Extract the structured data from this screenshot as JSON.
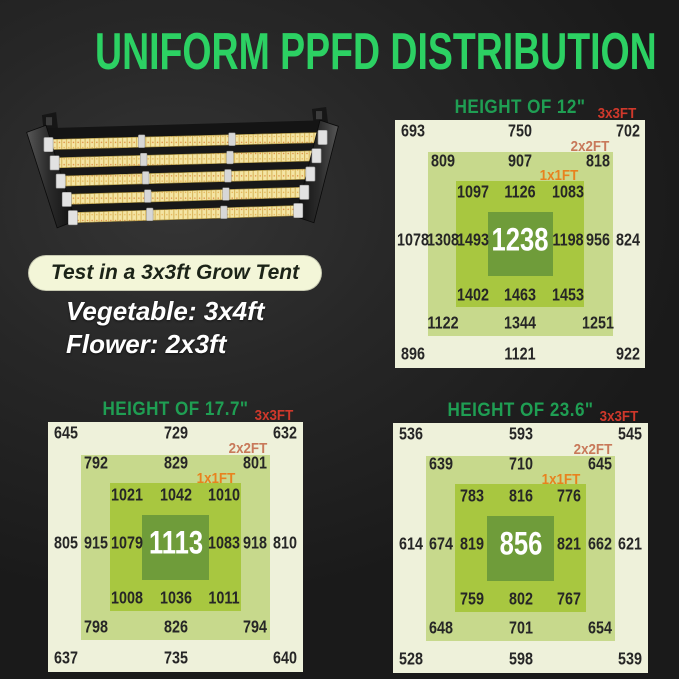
{
  "title": "UNIFORM PPFD DISTRIBUTION",
  "left_panel": {
    "tent_note": "Test in a 3x3ft Grow Tent",
    "vegetable": "Vegetable: 3x4ft",
    "flower": "Flower: 2x3ft"
  },
  "colors": {
    "title_green": "#2cd163",
    "header_green": "#1f9e53",
    "label_red": "#cf382b",
    "label_salmon": "#c8795a",
    "label_orange": "#e8821e",
    "box_3x3": "#eef1da",
    "box_2x2": "#c7d98c",
    "box_1x1": "#a8c740",
    "box_center": "#6f9c3a",
    "value_text": "#262626",
    "center_value_text": "#ffffff",
    "pill_bg": "#f3f6d8",
    "pill_text": "#1c2418",
    "body_text": "#ffffff"
  },
  "chart_data": [
    {
      "type": "heatmap",
      "title": "HEIGHT OF 12\"",
      "rings": {
        "outer": "3x3FT",
        "mid": "2x2FT",
        "inner": "1x1FT"
      },
      "center_value": 1238,
      "rows": [
        [
          693,
          750,
          702
        ],
        [
          809,
          907,
          818
        ],
        [
          1097,
          1126,
          1083
        ],
        [
          1078,
          1308,
          1493,
          1238,
          1198,
          956,
          824
        ],
        [
          1402,
          1463,
          1453
        ],
        [
          1122,
          1344,
          1251
        ],
        [
          896,
          1121,
          922
        ]
      ]
    },
    {
      "type": "heatmap",
      "title": "HEIGHT OF 17.7\"",
      "rings": {
        "outer": "3x3FT",
        "mid": "2x2FT",
        "inner": "1x1FT"
      },
      "center_value": 1113,
      "rows": [
        [
          645,
          729,
          632
        ],
        [
          792,
          829,
          801
        ],
        [
          1021,
          1042,
          1010
        ],
        [
          805,
          915,
          1079,
          1113,
          1083,
          918,
          810
        ],
        [
          1008,
          1036,
          1011
        ],
        [
          798,
          826,
          794
        ],
        [
          637,
          735,
          640
        ]
      ]
    },
    {
      "type": "heatmap",
      "title": "HEIGHT OF 23.6\"",
      "rings": {
        "outer": "3x3FT",
        "mid": "2x2FT",
        "inner": "1x1FT"
      },
      "center_value": 856,
      "rows": [
        [
          536,
          593,
          545
        ],
        [
          639,
          710,
          645
        ],
        [
          783,
          816,
          776
        ],
        [
          614,
          674,
          819,
          856,
          821,
          662,
          621
        ],
        [
          759,
          802,
          767
        ],
        [
          648,
          701,
          654
        ],
        [
          528,
          598,
          539
        ]
      ]
    }
  ]
}
